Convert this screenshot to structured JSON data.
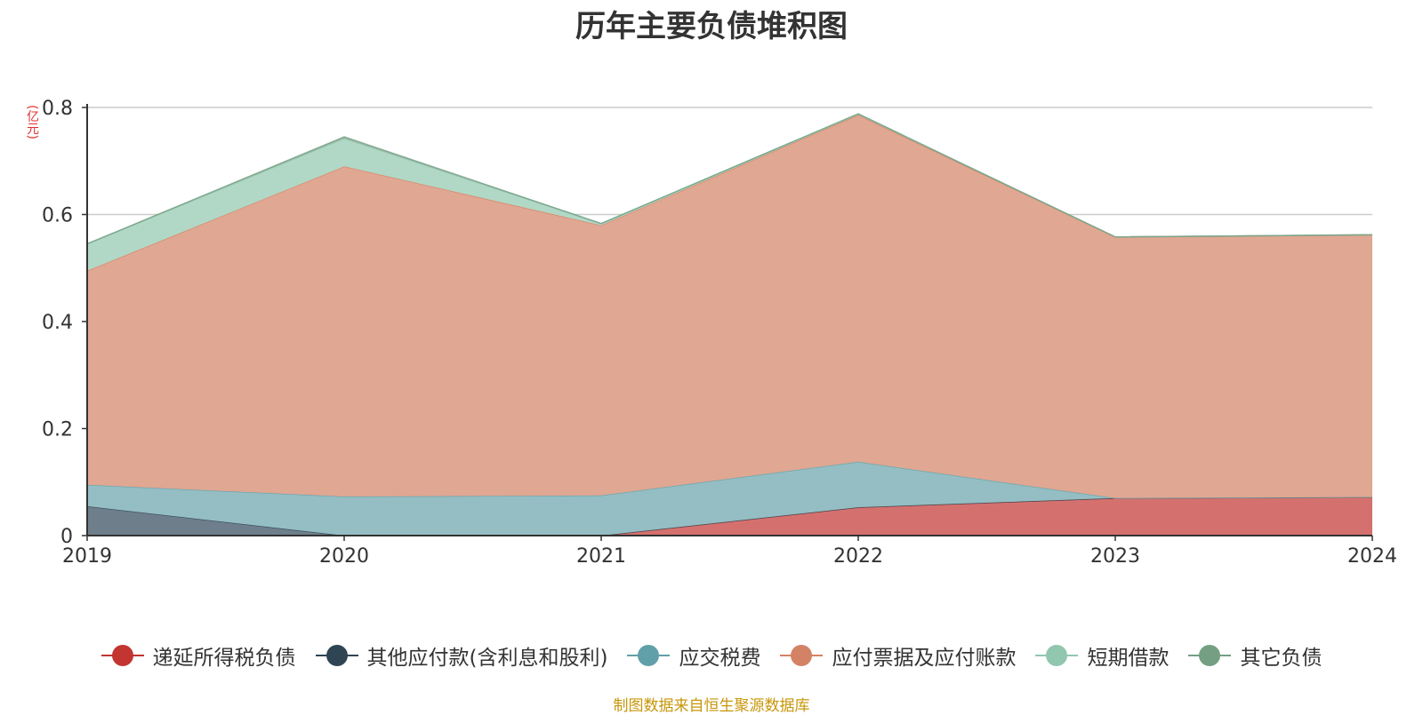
{
  "chart_data": {
    "type": "area",
    "stacked": true,
    "title": "历年主要负债堆积图",
    "unit_label": "(亿元)",
    "x": [
      "2019",
      "2020",
      "2021",
      "2022",
      "2023",
      "2024"
    ],
    "ylim": [
      0,
      0.8
    ],
    "yticks": [
      "0",
      "0.2",
      "0.4",
      "0.6",
      "0.8"
    ],
    "grid": true,
    "legend_position": "bottom",
    "series": [
      {
        "name": "递延所得税负债",
        "color": "#c23531",
        "fill": "#d4716e",
        "values": [
          0,
          0,
          0,
          0.053,
          0.07,
          0.072
        ]
      },
      {
        "name": "其他应付款(含利息和股利)",
        "color": "#2f4554",
        "fill": "#6e7f8b",
        "values": [
          0.055,
          0,
          0,
          0,
          0,
          0
        ]
      },
      {
        "name": "应交税费",
        "color": "#61a0a8",
        "fill": "#94bec3",
        "values": [
          0.04,
          0.073,
          0.075,
          0.085,
          0,
          0
        ]
      },
      {
        "name": "应付票据及应付账款",
        "color": "#d48265",
        "fill": "#e0a792",
        "values": [
          0.4,
          0.617,
          0.505,
          0.648,
          0.488,
          0.49
        ]
      },
      {
        "name": "短期借款",
        "color": "#91c7ae",
        "fill": "#b1d8c6",
        "values": [
          0.05,
          0.052,
          0.003,
          0.002,
          0,
          0
        ]
      },
      {
        "name": "其它负债",
        "color": "#749f83",
        "fill": "#9ebba8",
        "values": [
          0,
          0.003,
          0,
          0,
          0,
          0
        ]
      }
    ]
  },
  "source_text": "制图数据来自恒生聚源数据库"
}
